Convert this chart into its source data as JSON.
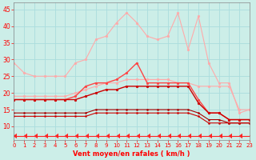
{
  "x": [
    0,
    1,
    2,
    3,
    4,
    5,
    6,
    7,
    8,
    9,
    10,
    11,
    12,
    13,
    14,
    15,
    16,
    17,
    18,
    19,
    20,
    21,
    22,
    23
  ],
  "series": [
    {
      "name": "light_pink_upper",
      "color": "#ffaaaa",
      "lw": 0.8,
      "marker": "o",
      "ms": 2.0,
      "y": [
        29,
        26,
        25,
        25,
        25,
        25,
        29,
        30,
        36,
        37,
        41,
        44,
        41,
        37,
        36,
        37,
        44,
        33,
        43,
        29,
        23,
        23,
        14,
        15
      ]
    },
    {
      "name": "light_pink_lower",
      "color": "#ffaaaa",
      "lw": 0.8,
      "marker": "o",
      "ms": 2.0,
      "y": [
        19,
        19,
        19,
        19,
        19,
        19,
        20,
        21,
        22,
        23,
        23,
        24,
        24,
        24,
        24,
        24,
        23,
        23,
        22,
        22,
        22,
        22,
        15,
        15
      ]
    },
    {
      "name": "medium_red",
      "color": "#ff4444",
      "lw": 1.0,
      "marker": "o",
      "ms": 2.0,
      "y": [
        18,
        18,
        18,
        18,
        18,
        18,
        19,
        22,
        23,
        23,
        24,
        26,
        29,
        23,
        23,
        23,
        23,
        23,
        18,
        14,
        14,
        12,
        12,
        12
      ]
    },
    {
      "name": "dark_red_upper",
      "color": "#cc0000",
      "lw": 1.0,
      "marker": "o",
      "ms": 2.0,
      "y": [
        18,
        18,
        18,
        18,
        18,
        18,
        18,
        19,
        20,
        21,
        21,
        22,
        22,
        22,
        22,
        22,
        22,
        22,
        17,
        14,
        14,
        12,
        12,
        12
      ]
    },
    {
      "name": "dark_red_lower1",
      "color": "#aa0000",
      "lw": 0.8,
      "marker": "o",
      "ms": 1.5,
      "y": [
        14,
        14,
        14,
        14,
        14,
        14,
        14,
        14,
        15,
        15,
        15,
        15,
        15,
        15,
        15,
        15,
        15,
        15,
        14,
        12,
        12,
        11,
        11,
        11
      ]
    },
    {
      "name": "dark_red_lower2",
      "color": "#cc0000",
      "lw": 0.8,
      "marker": "o",
      "ms": 1.5,
      "y": [
        13,
        13,
        13,
        13,
        13,
        13,
        13,
        13,
        14,
        14,
        14,
        14,
        14,
        14,
        14,
        14,
        14,
        14,
        13,
        11,
        11,
        11,
        11,
        11
      ]
    },
    {
      "name": "bottom_arrows",
      "color": "#ff2222",
      "lw": 0.8,
      "marker": 4,
      "ms": 4.0,
      "y": [
        7,
        7,
        7,
        7,
        7,
        7,
        7,
        7,
        7,
        7,
        7,
        7,
        7,
        7,
        7,
        7,
        7,
        7,
        7,
        7,
        7,
        7,
        7,
        7
      ]
    }
  ],
  "xlim": [
    0,
    23
  ],
  "ylim": [
    6,
    47
  ],
  "yticks": [
    10,
    15,
    20,
    25,
    30,
    35,
    40,
    45
  ],
  "xticks": [
    0,
    1,
    2,
    3,
    4,
    5,
    6,
    7,
    8,
    9,
    10,
    11,
    12,
    13,
    14,
    15,
    16,
    17,
    18,
    19,
    20,
    21,
    22,
    23
  ],
  "xlabel": "Vent moyen/en rafales ( km/h )",
  "bg_color": "#cceee8",
  "grid_color": "#aadddd",
  "tick_color": "#ff0000",
  "label_color": "#ff0000",
  "spine_color": "#888888"
}
